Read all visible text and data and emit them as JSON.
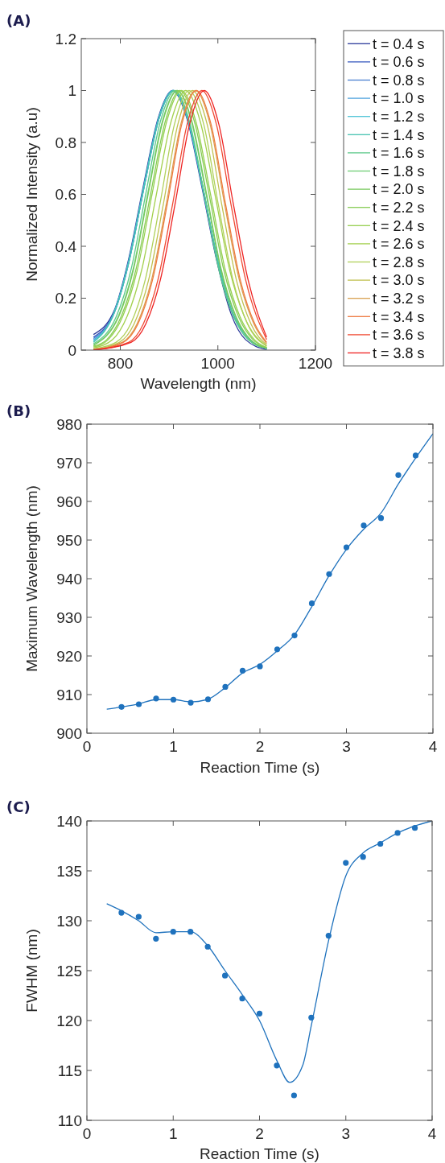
{
  "chart_data": [
    {
      "type": "line",
      "title": "(A)",
      "xlabel": "Wavelength (nm)",
      "ylabel": "Normalized Intensity (a.u)",
      "xlim": [
        720,
        1200
      ],
      "xticks": [
        800,
        1000,
        1200
      ],
      "ylim": [
        0,
        1.2
      ],
      "yticks": [
        0,
        0.2,
        0.4,
        0.6,
        0.8,
        1,
        1.2
      ],
      "legend": "right",
      "series": [
        {
          "name": "t = 0.4 s",
          "color": "#2c3a9b",
          "x": [
            745,
            787,
            817,
            847,
            877,
            907,
            937,
            967,
            997,
            1027,
            1057,
            1100
          ],
          "values": [
            0.06,
            0.15,
            0.35,
            0.63,
            0.89,
            1,
            0.89,
            0.63,
            0.35,
            0.14,
            0.04,
            0.002
          ]
        },
        {
          "name": "t = 0.6 s",
          "color": "#3a5bc0",
          "x": [
            745,
            788,
            818,
            848,
            878,
            908,
            938,
            968,
            998,
            1028,
            1058,
            1100
          ],
          "values": [
            0.05,
            0.15,
            0.35,
            0.63,
            0.89,
            1,
            0.89,
            0.63,
            0.35,
            0.15,
            0.054,
            0.006
          ]
        },
        {
          "name": "t = 0.8 s",
          "color": "#4a7fd0",
          "x": [
            745,
            789,
            819,
            849,
            879,
            909,
            939,
            969,
            999,
            1029,
            1059,
            1100
          ],
          "values": [
            0.045,
            0.15,
            0.35,
            0.63,
            0.89,
            1,
            0.89,
            0.63,
            0.35,
            0.15,
            0.054,
            0.006
          ]
        },
        {
          "name": "t = 1.0 s",
          "color": "#4fa3de",
          "x": [
            745,
            789,
            819,
            849,
            879,
            909,
            939,
            969,
            999,
            1029,
            1059,
            1100
          ],
          "values": [
            0.04,
            0.15,
            0.35,
            0.63,
            0.89,
            1,
            0.89,
            0.63,
            0.35,
            0.15,
            0.054,
            0.006
          ]
        },
        {
          "name": "t = 1.2 s",
          "color": "#4cc3d6",
          "x": [
            745,
            788,
            818,
            848,
            878,
            908,
            938,
            968,
            998,
            1028,
            1058,
            1100
          ],
          "values": [
            0.035,
            0.15,
            0.35,
            0.63,
            0.89,
            1,
            0.89,
            0.63,
            0.35,
            0.15,
            0.054,
            0.006
          ]
        },
        {
          "name": "t = 1.4 s",
          "color": "#45c2b0",
          "x": [
            745,
            789,
            819,
            849,
            879,
            909,
            939,
            969,
            999,
            1029,
            1059,
            1100
          ],
          "values": [
            0.03,
            0.15,
            0.35,
            0.63,
            0.89,
            1,
            0.89,
            0.63,
            0.35,
            0.15,
            0.054,
            0.006
          ]
        },
        {
          "name": "t = 1.6 s",
          "color": "#5cc98a",
          "x": [
            745,
            792,
            822,
            852,
            882,
            912,
            942,
            972,
            1002,
            1032,
            1062,
            1100
          ],
          "values": [
            0.025,
            0.13,
            0.31,
            0.6,
            0.88,
            1,
            0.88,
            0.6,
            0.31,
            0.13,
            0.04,
            0.006
          ]
        },
        {
          "name": "t = 1.8 s",
          "color": "#6dcc74",
          "x": [
            745,
            796,
            826,
            856,
            886,
            916,
            946,
            976,
            1006,
            1036,
            1066,
            1100
          ],
          "values": [
            0.02,
            0.13,
            0.31,
            0.6,
            0.88,
            1,
            0.88,
            0.6,
            0.31,
            0.13,
            0.04,
            0.008
          ]
        },
        {
          "name": "t = 2.0 s",
          "color": "#78c95e",
          "x": [
            745,
            797,
            827,
            857,
            887,
            917,
            947,
            977,
            1007,
            1037,
            1067,
            1100
          ],
          "values": [
            0.018,
            0.13,
            0.31,
            0.6,
            0.88,
            1,
            0.88,
            0.6,
            0.31,
            0.13,
            0.04,
            0.008
          ]
        },
        {
          "name": "t = 2.2 s",
          "color": "#86cc55",
          "x": [
            745,
            772,
            802,
            832,
            862,
            892,
            922,
            952,
            982,
            1012,
            1042,
            1072,
            1100
          ],
          "values": [
            0.015,
            0.04,
            0.13,
            0.31,
            0.6,
            0.88,
            1,
            0.88,
            0.6,
            0.31,
            0.13,
            0.04,
            0.01
          ]
        },
        {
          "name": "t = 2.4 s",
          "color": "#95cf4f",
          "x": [
            745,
            775,
            805,
            835,
            865,
            895,
            925,
            955,
            985,
            1015,
            1045,
            1075,
            1100
          ],
          "values": [
            0.012,
            0.04,
            0.13,
            0.31,
            0.6,
            0.88,
            1,
            0.88,
            0.6,
            0.31,
            0.13,
            0.04,
            0.01
          ]
        },
        {
          "name": "t = 2.6 s",
          "color": "#a3d04e",
          "x": [
            745,
            784,
            814,
            844,
            874,
            904,
            934,
            964,
            994,
            1024,
            1054,
            1100
          ],
          "values": [
            0.008,
            0.04,
            0.13,
            0.31,
            0.6,
            0.88,
            1,
            0.88,
            0.6,
            0.31,
            0.13,
            0.015
          ]
        },
        {
          "name": "t = 2.8 s",
          "color": "#b0d05a",
          "x": [
            745,
            791,
            821,
            851,
            881,
            911,
            941,
            971,
            1001,
            1031,
            1061,
            1100
          ],
          "values": [
            0.005,
            0.03,
            0.1,
            0.27,
            0.56,
            0.87,
            1,
            0.87,
            0.56,
            0.27,
            0.1,
            0.015
          ]
        },
        {
          "name": "t = 3.0 s",
          "color": "#c0c050",
          "x": [
            745,
            798,
            828,
            858,
            888,
            918,
            948,
            978,
            1008,
            1038,
            1068,
            1100
          ],
          "values": [
            0.003,
            0.03,
            0.1,
            0.27,
            0.56,
            0.87,
            1,
            0.87,
            0.56,
            0.27,
            0.1,
            0.02
          ]
        },
        {
          "name": "t = 3.2 s",
          "color": "#d9a050",
          "x": [
            745,
            804,
            834,
            864,
            894,
            924,
            954,
            984,
            1014,
            1044,
            1074,
            1100
          ],
          "values": [
            0.002,
            0.03,
            0.1,
            0.27,
            0.56,
            0.87,
            1,
            0.87,
            0.56,
            0.27,
            0.1,
            0.025
          ]
        },
        {
          "name": "t = 3.4 s",
          "color": "#ee7a40",
          "x": [
            745,
            806,
            836,
            866,
            896,
            926,
            956,
            986,
            1016,
            1046,
            1076,
            1100
          ],
          "values": [
            0.002,
            0.03,
            0.1,
            0.27,
            0.56,
            0.87,
            1,
            0.87,
            0.56,
            0.27,
            0.1,
            0.03
          ]
        },
        {
          "name": "t = 3.6 s",
          "color": "#f04a32",
          "x": [
            745,
            817,
            847,
            877,
            907,
            937,
            967,
            997,
            1027,
            1057,
            1100
          ],
          "values": [
            0.001,
            0.03,
            0.1,
            0.27,
            0.56,
            0.87,
            1,
            0.87,
            0.56,
            0.27,
            0.04
          ]
        },
        {
          "name": "t = 3.8 s",
          "color": "#ee2222",
          "x": [
            745,
            822,
            852,
            882,
            912,
            942,
            972,
            1002,
            1032,
            1062,
            1100
          ],
          "values": [
            0,
            0.03,
            0.1,
            0.27,
            0.56,
            0.87,
            1,
            0.87,
            0.56,
            0.27,
            0.05
          ]
        }
      ]
    },
    {
      "type": "scatter",
      "title": "(B)",
      "xlabel": "Reaction Time (s)",
      "ylabel": "Maximum Wavelength (nm)",
      "xlim": [
        0,
        4
      ],
      "xticks": [
        0,
        1,
        2,
        3,
        4
      ],
      "ylim": [
        900,
        980
      ],
      "yticks": [
        900,
        910,
        920,
        930,
        940,
        950,
        960,
        970,
        980
      ],
      "series": [
        {
          "type": "scatter",
          "marker": "circle",
          "color": "#1f72bd",
          "x": [
            0.4,
            0.6,
            0.8,
            1.0,
            1.2,
            1.4,
            1.6,
            1.8,
            2.0,
            2.2,
            2.4,
            2.6,
            2.8,
            3.0,
            3.2,
            3.4,
            3.6,
            3.8
          ],
          "values": [
            906.8,
            907.5,
            909,
            908.7,
            907.9,
            908.8,
            912,
            916.2,
            917.3,
            921.7,
            925.3,
            933.6,
            941.2,
            948.1,
            953.8,
            955.7,
            966.8,
            971.9
          ]
        },
        {
          "type": "line",
          "marker": "none",
          "color": "#1f72bd",
          "x": [
            0.23,
            0.4,
            0.6,
            0.8,
            1.0,
            1.2,
            1.4,
            1.6,
            1.8,
            2.0,
            2.2,
            2.4,
            2.6,
            2.8,
            3.0,
            3.2,
            3.4,
            3.6,
            3.8,
            4.0
          ],
          "values": [
            906.2,
            906.8,
            907.6,
            908.7,
            908.7,
            908.1,
            908.8,
            911.8,
            915.6,
            917.8,
            921.3,
            925.5,
            932.8,
            940.8,
            947.6,
            952.8,
            957,
            964.5,
            971.2,
            977.5
          ]
        }
      ]
    },
    {
      "type": "scatter",
      "title": "(C)",
      "xlabel": "Reaction Time (s)",
      "ylabel": "FWHM (nm)",
      "xlim": [
        0,
        4
      ],
      "xticks": [
        0,
        1,
        2,
        3,
        4
      ],
      "ylim": [
        110,
        140
      ],
      "yticks": [
        110,
        115,
        120,
        125,
        130,
        135,
        140
      ],
      "series": [
        {
          "type": "scatter",
          "marker": "circle",
          "color": "#1f72bd",
          "x": [
            0.4,
            0.6,
            0.8,
            1.0,
            1.2,
            1.4,
            1.6,
            1.8,
            2.0,
            2.2,
            2.4,
            2.6,
            2.8,
            3.0,
            3.2,
            3.4,
            3.6,
            3.8
          ],
          "values": [
            130.8,
            130.4,
            128.2,
            128.9,
            128.9,
            127.4,
            124.5,
            122.2,
            120.7,
            115.5,
            112.5,
            120.3,
            128.5,
            135.8,
            136.4,
            137.7,
            138.8,
            139.3
          ]
        },
        {
          "type": "line",
          "marker": "none",
          "color": "#1f72bd",
          "x": [
            0.23,
            0.4,
            0.6,
            0.8,
            1.0,
            1.2,
            1.4,
            1.6,
            1.8,
            2.0,
            2.2,
            2.35,
            2.5,
            2.6,
            2.8,
            3.0,
            3.2,
            3.4,
            3.6,
            3.8,
            4.0
          ],
          "values": [
            131.7,
            131,
            130,
            128.8,
            128.9,
            128.9,
            127.5,
            125,
            122.6,
            120,
            116,
            113.8,
            115.5,
            119.5,
            128,
            134.5,
            136.8,
            137.8,
            138.8,
            139.5,
            140
          ]
        }
      ]
    }
  ]
}
